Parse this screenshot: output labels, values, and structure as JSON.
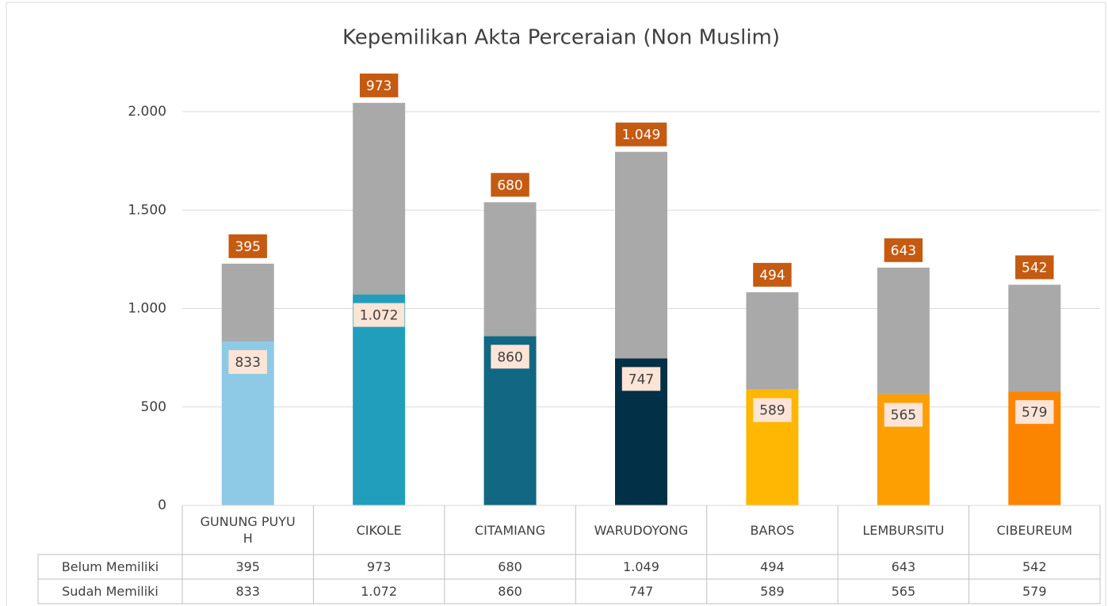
{
  "chart_data": {
    "type": "bar",
    "stacked": true,
    "title": "Kepemilikan Akta Perceraian (Non Muslim)",
    "categories": [
      "GUNUNG PUYUH",
      "CIKOLE",
      "CITAMIANG",
      "WARUDOYONG",
      "BAROS",
      "LEMBURSITU",
      "CIBEUREUM"
    ],
    "series": [
      {
        "name": "Belum Memiliki",
        "color": "#a9a9a9",
        "label_color": "#c55a11",
        "values": [
          395,
          973,
          680,
          1049,
          494,
          643,
          542
        ],
        "value_labels": [
          "395",
          "973",
          "680",
          "1.049",
          "494",
          "643",
          "542"
        ]
      },
      {
        "name": "Sudah Memiliki",
        "colors": [
          "#8ecae6",
          "#219ebc",
          "#126782",
          "#023047",
          "#ffb703",
          "#fd9e02",
          "#fb8500"
        ],
        "label_color": "#fce4d6",
        "values": [
          833,
          1072,
          860,
          747,
          589,
          565,
          579
        ],
        "value_labels": [
          "833",
          "1.072",
          "860",
          "747",
          "589",
          "565",
          "579"
        ]
      }
    ],
    "ylim": [
      0,
      2000
    ],
    "yticks": [
      0,
      500,
      {
        "value": 1000,
        "label": "1.000"
      },
      {
        "value": 1500,
        "label": "1.500"
      },
      {
        "value": 2000,
        "label": "2.000"
      }
    ],
    "grid": true,
    "data_table": true
  }
}
